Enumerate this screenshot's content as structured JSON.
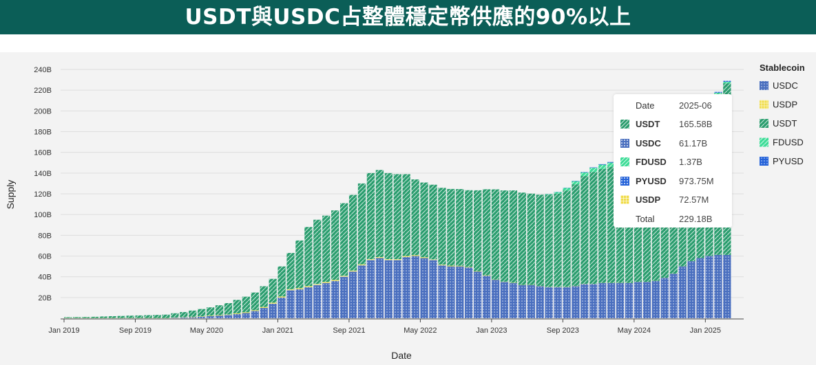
{
  "banner": {
    "title": "USDT與USDC占整體穩定幣供應的90%以上"
  },
  "chart_data": {
    "type": "bar",
    "stacked": true,
    "xlabel": "Date",
    "ylabel": "Supply",
    "ylim": [
      0,
      240
    ],
    "y_unit": "B",
    "grid": true,
    "legend_position": "right",
    "legend_title": "Stablecoin",
    "yticks": [
      "20B",
      "40B",
      "60B",
      "80B",
      "100B",
      "120B",
      "140B",
      "160B",
      "180B",
      "200B",
      "220B",
      "240B"
    ],
    "x_tick_labels": [
      "Jan 2019",
      "Sep 2019",
      "May 2020",
      "Jan 2021",
      "Sep 2021",
      "May 2022",
      "Jan 2023",
      "Sep 2023",
      "May 2024",
      "Jan 2025"
    ],
    "x_start": "2019-01",
    "series": [
      {
        "name": "USDC",
        "color": "#4a6fbf",
        "pattern": "dots",
        "values": [
          0,
          0,
          0,
          0,
          0,
          0,
          0,
          0,
          0,
          0,
          0,
          0,
          0.5,
          0.7,
          1,
          1.5,
          2,
          2.5,
          3,
          4,
          5,
          7,
          10,
          14,
          20,
          27,
          28,
          30,
          32,
          34,
          36,
          40,
          45,
          51,
          56,
          58,
          56,
          56,
          59,
          60,
          58,
          56,
          51,
          50,
          50,
          49,
          45,
          41,
          37,
          35,
          34,
          32,
          32,
          31,
          30,
          30,
          30,
          31,
          33,
          33,
          34,
          34,
          34,
          34,
          35,
          35,
          36,
          39,
          43,
          50,
          55,
          58,
          60,
          61,
          61
        ]
      },
      {
        "name": "USDP",
        "color": "#f0dc4a",
        "pattern": "grid",
        "values": [
          0.2,
          0.2,
          0.2,
          0.2,
          0.2,
          0.2,
          0.2,
          0.2,
          0.2,
          0.2,
          0.2,
          0.2,
          0.3,
          0.3,
          0.4,
          0.4,
          0.5,
          0.5,
          0.6,
          0.7,
          0.8,
          0.8,
          0.9,
          1,
          1,
          1,
          1,
          1,
          1,
          1,
          1,
          1,
          1,
          1,
          1,
          1,
          1,
          1,
          1,
          0.9,
          0.9,
          0.8,
          0.8,
          0.7,
          0.6,
          0.5,
          0.4,
          0.4,
          0.3,
          0.3,
          0.3,
          0.2,
          0.2,
          0.2,
          0.2,
          0.2,
          0.2,
          0.2,
          0.2,
          0.1,
          0.1,
          0.1,
          0.1,
          0.1,
          0.1,
          0.1,
          0.1,
          0.1,
          0.1,
          0.1,
          0.1,
          0.1,
          0.1,
          0.1,
          0.07
        ]
      },
      {
        "name": "USDT",
        "color": "#2a9d6e",
        "pattern": "hatch",
        "values": [
          0.8,
          0.9,
          1,
          1.2,
          1.5,
          1.8,
          2,
          2.3,
          2.5,
          2.8,
          3,
          3.3,
          4,
          5,
          6,
          7,
          8,
          9.5,
          11,
          13,
          15,
          17,
          20,
          23,
          29,
          35,
          46,
          57,
          62,
          64,
          67,
          70,
          73,
          78,
          83,
          84,
          83,
          82,
          79,
          73,
          72,
          72,
          74,
          74,
          74,
          74,
          78,
          83,
          87,
          88,
          89,
          89,
          88,
          88,
          89,
          90,
          93,
          98,
          104,
          108,
          110,
          112,
          113,
          114,
          115,
          117,
          118,
          119,
          120,
          121,
          122,
          137,
          143,
          155,
          165.58
        ]
      },
      {
        "name": "FDUSD",
        "color": "#3ddc97",
        "pattern": "hatch",
        "values": [
          0,
          0,
          0,
          0,
          0,
          0,
          0,
          0,
          0,
          0,
          0,
          0,
          0,
          0,
          0,
          0,
          0,
          0,
          0,
          0,
          0,
          0,
          0,
          0,
          0,
          0,
          0,
          0,
          0,
          0,
          0,
          0,
          0,
          0,
          0,
          0,
          0,
          0,
          0,
          0,
          0,
          0,
          0,
          0,
          0,
          0,
          0,
          0,
          0,
          0,
          0,
          0,
          0,
          0,
          0.5,
          1.5,
          2.5,
          3,
          3.5,
          4,
          4,
          4,
          3.5,
          3,
          3,
          2.8,
          2.5,
          2.3,
          2,
          2,
          1.8,
          1.6,
          1.5,
          1.4,
          1.37
        ]
      },
      {
        "name": "PYUSD",
        "color": "#2563d9",
        "pattern": "dots",
        "values": [
          0,
          0,
          0,
          0,
          0,
          0,
          0,
          0,
          0,
          0,
          0,
          0,
          0,
          0,
          0,
          0,
          0,
          0,
          0,
          0,
          0,
          0,
          0,
          0,
          0,
          0,
          0,
          0,
          0,
          0,
          0,
          0,
          0,
          0,
          0,
          0,
          0,
          0,
          0,
          0,
          0,
          0,
          0,
          0,
          0,
          0,
          0,
          0,
          0,
          0,
          0,
          0,
          0,
          0,
          0.1,
          0.15,
          0.2,
          0.3,
          0.4,
          0.4,
          0.5,
          0.6,
          0.8,
          0.9,
          1,
          0.9,
          0.7,
          0.6,
          0.5,
          0.5,
          0.5,
          0.6,
          0.7,
          0.85,
          0.97
        ]
      }
    ]
  },
  "legend": {
    "title": "Stablecoin",
    "items": [
      {
        "label": "USDC",
        "color": "#4a6fbf",
        "pattern": "dots"
      },
      {
        "label": "USDP",
        "color": "#f0dc4a",
        "pattern": "grid"
      },
      {
        "label": "USDT",
        "color": "#2a9d6e",
        "pattern": "hatch"
      },
      {
        "label": "FDUSD",
        "color": "#3ddc97",
        "pattern": "hatch"
      },
      {
        "label": "PYUSD",
        "color": "#2563d9",
        "pattern": "dots"
      }
    ]
  },
  "tooltip": {
    "date_label": "Date",
    "date_value": "2025-06",
    "rows": [
      {
        "name": "USDT",
        "value": "165.58B",
        "color": "#2a9d6e",
        "pattern": "hatch"
      },
      {
        "name": "USDC",
        "value": "61.17B",
        "color": "#4a6fbf",
        "pattern": "dots"
      },
      {
        "name": "FDUSD",
        "value": "1.37B",
        "color": "#3ddc97",
        "pattern": "hatch"
      },
      {
        "name": "PYUSD",
        "value": "973.75M",
        "color": "#2563d9",
        "pattern": "dots"
      },
      {
        "name": "USDP",
        "value": "72.57M",
        "color": "#f0dc4a",
        "pattern": "grid"
      }
    ],
    "total_label": "Total",
    "total_value": "229.18B"
  }
}
